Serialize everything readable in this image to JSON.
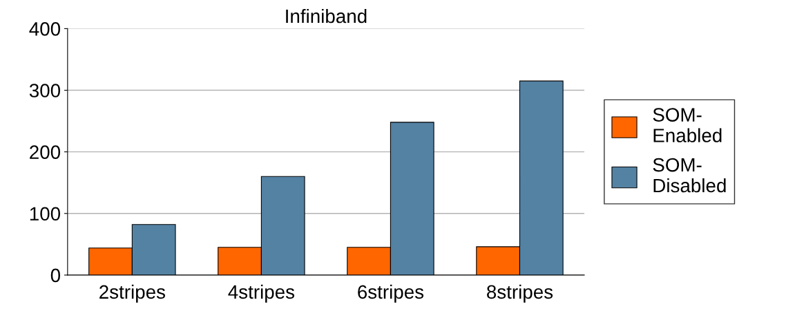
{
  "chart_data": {
    "type": "bar",
    "title": "Infiniband",
    "categories": [
      "2stripes",
      "4stripes",
      "6stripes",
      "8stripes"
    ],
    "series": [
      {
        "name": "SOM-\nEnabled",
        "color": "#ff6600",
        "values": [
          44,
          45,
          45,
          46
        ]
      },
      {
        "name": "SOM-\nDisabled",
        "color": "#5482a3",
        "values": [
          82,
          160,
          248,
          315
        ]
      }
    ],
    "ylim": [
      0,
      400
    ],
    "yticks": [
      0,
      100,
      200,
      300,
      400
    ],
    "grid": "y",
    "legend": "right"
  }
}
